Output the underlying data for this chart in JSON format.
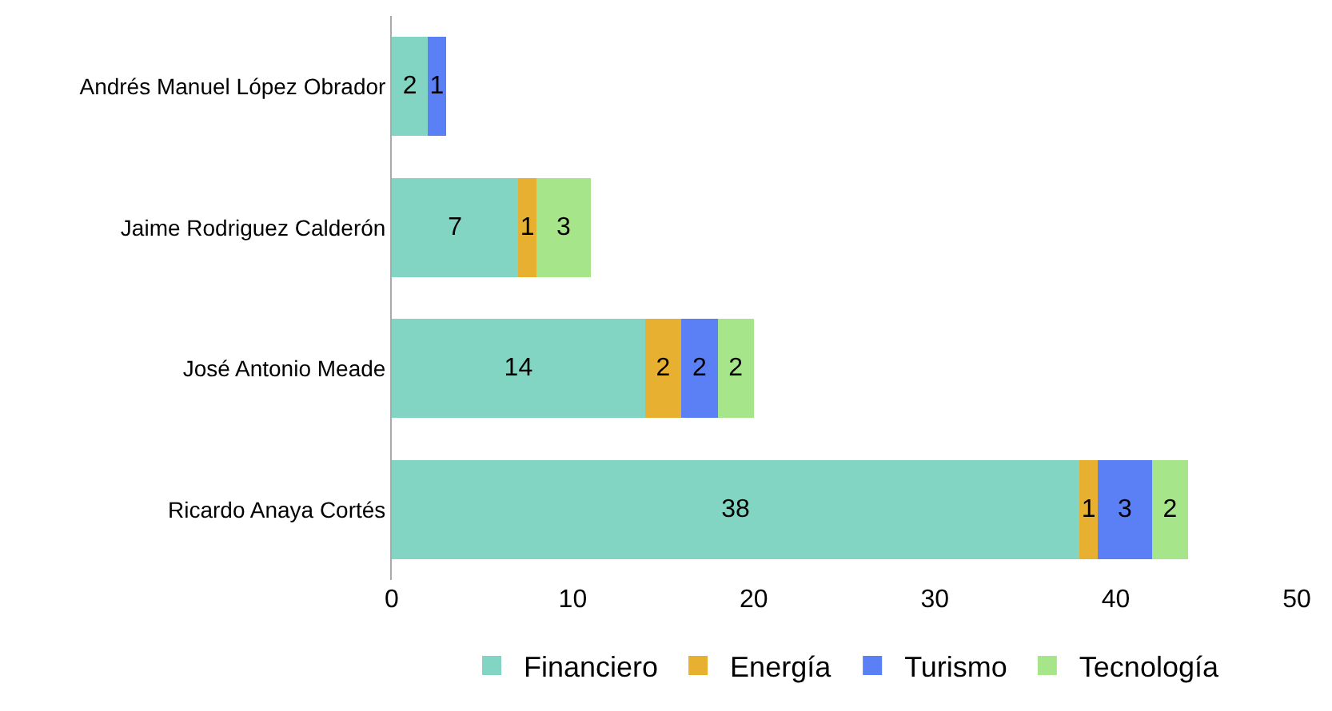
{
  "chart_data": {
    "type": "bar",
    "orientation": "horizontal",
    "stacked": true,
    "data_labels": true,
    "categories": [
      "Andrés Manuel López Obrador",
      "Jaime Rodriguez Calderón",
      "José Antonio Meade",
      "Ricardo Anaya Cortés"
    ],
    "series": [
      {
        "name": "Financiero",
        "color": "#83d5c3",
        "values": [
          2,
          7,
          14,
          38
        ]
      },
      {
        "name": "Energía",
        "color": "#e8b030",
        "values": [
          null,
          1,
          2,
          1
        ]
      },
      {
        "name": "Turismo",
        "color": "#5b7ff5",
        "values": [
          1,
          null,
          2,
          3
        ]
      },
      {
        "name": "Tecnología",
        "color": "#a6e58a",
        "values": [
          null,
          3,
          2,
          2
        ]
      }
    ],
    "xlim": [
      0,
      50
    ],
    "xticks": [
      0,
      10,
      20,
      30,
      40,
      50
    ],
    "legend": "bottom"
  }
}
